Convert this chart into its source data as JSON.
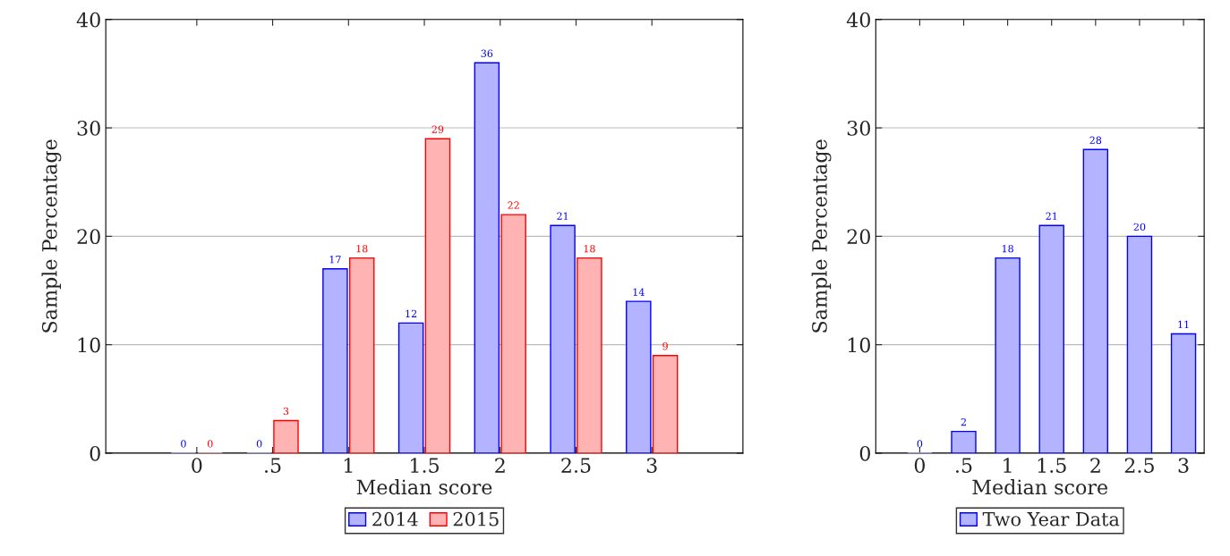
{
  "chart_data": [
    {
      "type": "bar",
      "xlabel": "Median score",
      "ylabel": "Sample Percentage",
      "categories": [
        "0",
        ".5",
        "1",
        "1.5",
        "2",
        "2.5",
        "3"
      ],
      "series": [
        {
          "name": "2014",
          "color": "#b3b3ff",
          "values": [
            0,
            0,
            17,
            12,
            36,
            21,
            14
          ]
        },
        {
          "name": "2015",
          "color": "#ffb3b3",
          "values": [
            0,
            3,
            18,
            29,
            22,
            18,
            9
          ]
        }
      ],
      "ylim": [
        0,
        40
      ],
      "yticks": [
        0,
        10,
        20,
        30,
        40
      ],
      "grid": "y",
      "legend": "bottom",
      "data_labels": true
    },
    {
      "type": "bar",
      "xlabel": "Median score",
      "ylabel": "Sample Percentage",
      "categories": [
        "0",
        ".5",
        "1",
        "1.5",
        "2",
        "2.5",
        "3"
      ],
      "series": [
        {
          "name": "Two Year Data",
          "color": "#b3b3ff",
          "values": [
            0,
            2,
            18,
            21,
            28,
            20,
            11
          ]
        }
      ],
      "ylim": [
        0,
        40
      ],
      "yticks": [
        0,
        10,
        20,
        30,
        40
      ],
      "grid": "y",
      "legend": "bottom",
      "data_labels": true
    }
  ]
}
